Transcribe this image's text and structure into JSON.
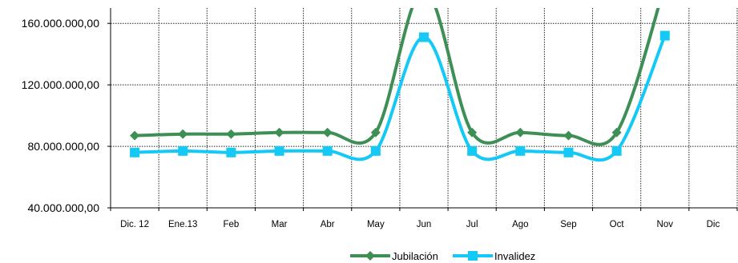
{
  "chart_data": {
    "type": "line",
    "title": "",
    "xlabel": "",
    "ylabel": "",
    "categories": [
      "Dic. 12",
      "Ene.13",
      "Feb",
      "Mar",
      "Abr",
      "May",
      "Jun",
      "Jul",
      "Ago",
      "Sep",
      "Oct",
      "Nov",
      "Dic"
    ],
    "ylim": [
      40000000,
      170000000
    ],
    "yticks": [
      40000000,
      80000000,
      120000000,
      160000000
    ],
    "ytick_labels": [
      "40.000.000,00",
      "80.000.000,00",
      "120.000.000,00",
      "160.000.000,00"
    ],
    "grid": "on",
    "legend_position": "bottom-center",
    "series": [
      {
        "name": "Jubilación",
        "color": "#3e8f56",
        "marker": "diamond",
        "values": [
          87000000,
          88000000,
          88000000,
          89000000,
          89000000,
          89000000,
          182000000,
          89000000,
          89000000,
          87000000,
          89000000,
          185000000,
          null
        ]
      },
      {
        "name": "Invalidez",
        "color": "#14c9f5",
        "marker": "square",
        "values": [
          76000000,
          77000000,
          76000000,
          77000000,
          77000000,
          77000000,
          151000000,
          77000000,
          77000000,
          76000000,
          77000000,
          152000000,
          null
        ]
      }
    ]
  }
}
